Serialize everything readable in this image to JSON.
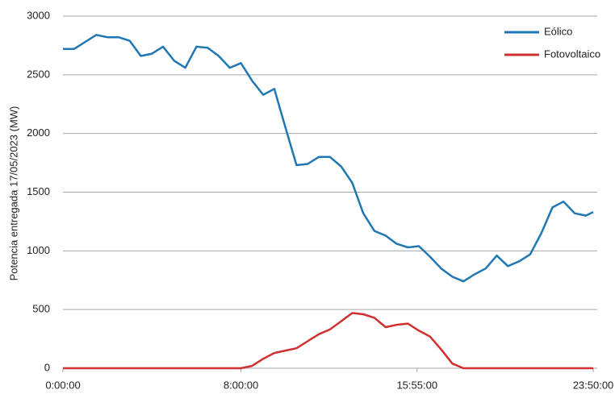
{
  "chart_data": {
    "type": "line",
    "ylabel": "Potencia entregada 17/05/2023 (MW)",
    "x": [
      0,
      30,
      60,
      90,
      120,
      150,
      180,
      210,
      240,
      270,
      300,
      330,
      360,
      390,
      420,
      450,
      480,
      510,
      540,
      570,
      600,
      630,
      660,
      690,
      720,
      750,
      780,
      810,
      840,
      870,
      900,
      930,
      960,
      990,
      1020,
      1050,
      1080,
      1110,
      1140,
      1170,
      1200,
      1230,
      1260,
      1290,
      1320,
      1350,
      1380,
      1410,
      1430
    ],
    "series": [
      {
        "name": "Eólico",
        "color": "#1f77b4",
        "values": [
          2720,
          2720,
          2780,
          2840,
          2820,
          2820,
          2790,
          2660,
          2680,
          2740,
          2620,
          2560,
          2740,
          2730,
          2660,
          2560,
          2600,
          2450,
          2330,
          2380,
          2050,
          1730,
          1740,
          1800,
          1800,
          1720,
          1580,
          1320,
          1170,
          1130,
          1060,
          1030,
          1040,
          950,
          850,
          780,
          740,
          800,
          850,
          960,
          870,
          910,
          970,
          1150,
          1370,
          1420,
          1320,
          1300,
          1330
        ]
      },
      {
        "name": "Fotovoltaico",
        "color": "#d03030",
        "values": [
          0,
          0,
          0,
          0,
          0,
          0,
          0,
          0,
          0,
          0,
          0,
          0,
          0,
          0,
          0,
          0,
          0,
          20,
          80,
          130,
          150,
          170,
          230,
          290,
          330,
          400,
          470,
          460,
          430,
          350,
          370,
          380,
          320,
          270,
          160,
          40,
          0,
          0,
          0,
          0,
          0,
          0,
          0,
          0,
          0,
          0,
          0,
          0,
          0
        ]
      }
    ],
    "xlim": [
      0,
      1430
    ],
    "xticks": [
      {
        "value": 0,
        "label": "0:00:00"
      },
      {
        "value": 480,
        "label": "8:00:00"
      },
      {
        "value": 955,
        "label": "15:55:00"
      },
      {
        "value": 1430,
        "label": "23:50:00"
      }
    ],
    "ylim": [
      0,
      3000
    ],
    "yticks": [
      0,
      500,
      1000,
      1500,
      2000,
      2500,
      3000
    ],
    "grid": true,
    "legend": "top-right"
  }
}
